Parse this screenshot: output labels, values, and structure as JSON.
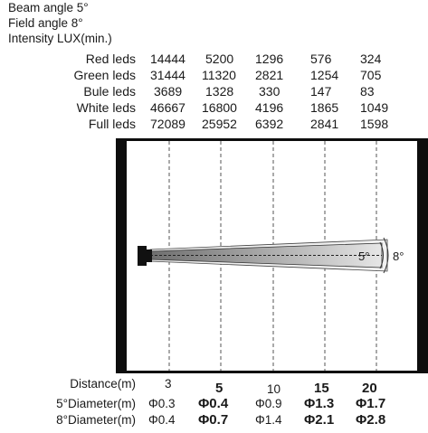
{
  "header": {
    "beam_angle": "Beam angle 5°",
    "field_angle": "Field angle 8°",
    "intensity": "Intensity LUX(min.)"
  },
  "table": {
    "rows": [
      {
        "label": "Red leds",
        "values": [
          "14444",
          "5200",
          "1296",
          "576",
          "324"
        ]
      },
      {
        "label": "Green leds",
        "values": [
          "31444",
          "11320",
          "2821",
          "1254",
          "705"
        ]
      },
      {
        "label": "Bule leds",
        "values": [
          "3689",
          "1328",
          "330",
          "147",
          "83"
        ]
      },
      {
        "label": "White leds",
        "values": [
          "46667",
          "16800",
          "4196",
          "1865",
          "1049"
        ]
      },
      {
        "label": "Full leds",
        "values": [
          "72089",
          "25952",
          "6392",
          "2841",
          "1598"
        ]
      }
    ]
  },
  "diagram": {
    "beam_label": "5°",
    "field_label": "8°"
  },
  "bottom": {
    "distance_label": "Distance(m)",
    "distances": [
      "3",
      "5",
      "10",
      "15",
      "20"
    ],
    "beam_diameter_label": "5°Diameter(m)",
    "beam_diameters": [
      "Φ0.3",
      "Φ0.4",
      "Φ0.9",
      "Φ1.3",
      "Φ1.7"
    ],
    "field_diameter_label": "8°Diameter(m)",
    "field_diameters": [
      "Φ0.4",
      "Φ0.7",
      "Φ1.4",
      "Φ2.1",
      "Φ2.8"
    ],
    "emphasized": [
      false,
      true,
      false,
      true,
      true
    ]
  },
  "colors": {
    "frame": "#0d0d0d",
    "beam_light": "#e6e6e6",
    "beam_dark": "#6e6e6e"
  }
}
